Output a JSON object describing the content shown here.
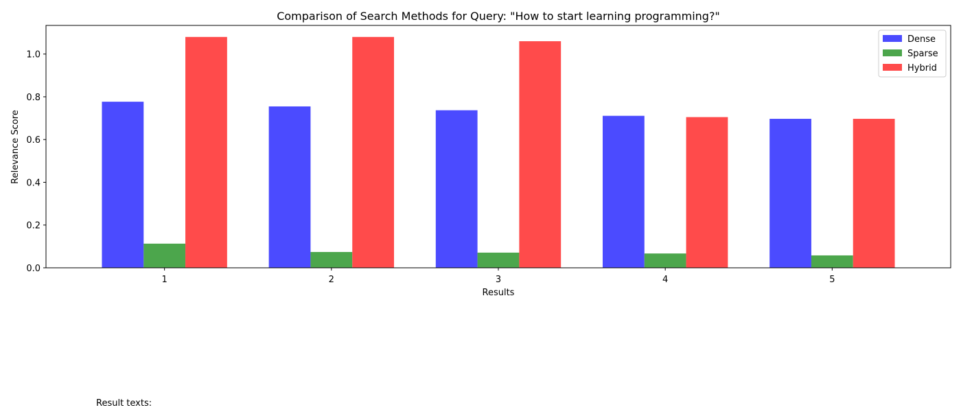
{
  "chart_data": {
    "type": "bar",
    "title": "Comparison of Search Methods for Query: \"How to start learning programming?\"",
    "xlabel": "Results",
    "ylabel": "Relevance Score",
    "categories": [
      "1",
      "2",
      "3",
      "4",
      "5"
    ],
    "ylim": [
      0,
      1.134
    ],
    "yticks": [
      0.0,
      0.2,
      0.4,
      0.6,
      0.8,
      1.0
    ],
    "ytick_labels": [
      "0.0",
      "0.2",
      "0.4",
      "0.6",
      "0.8",
      "1.0"
    ],
    "series": [
      {
        "name": "Dense",
        "color": "#4b4bff",
        "values": [
          0.777,
          0.755,
          0.737,
          0.711,
          0.697
        ]
      },
      {
        "name": "Sparse",
        "color": "#4ca64c",
        "values": [
          0.113,
          0.074,
          0.071,
          0.067,
          0.058
        ]
      },
      {
        "name": "Hybrid",
        "color": "#ff4b4b",
        "values": [
          1.08,
          1.08,
          1.06,
          0.705,
          0.697
        ]
      }
    ],
    "legend_position": "top-right",
    "grid": false
  },
  "footer": {
    "text": "Result texts:"
  }
}
